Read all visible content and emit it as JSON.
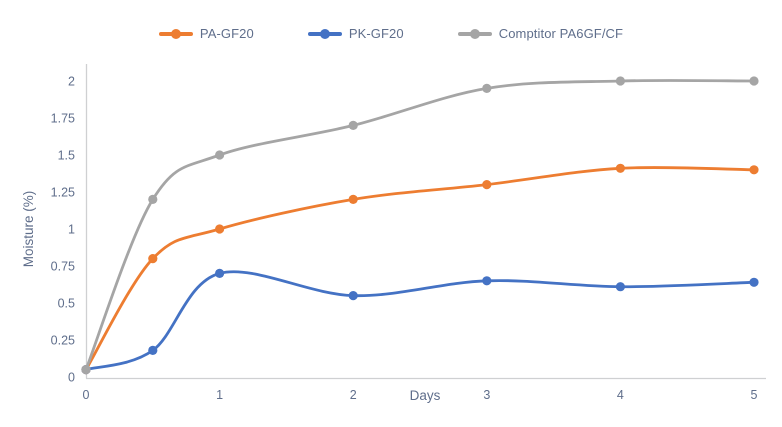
{
  "chart_data": {
    "type": "line",
    "title": "",
    "xlabel": "Days",
    "ylabel": "Moisture (%)",
    "x": [
      0,
      0.5,
      1,
      2,
      3,
      4,
      5
    ],
    "x_ticks": [
      0,
      1,
      2,
      3,
      4,
      5
    ],
    "y_ticks": [
      0,
      0.25,
      0.5,
      0.75,
      1,
      1.25,
      1.5,
      1.75,
      2
    ],
    "xlim": [
      0,
      5
    ],
    "ylim": [
      0,
      2
    ],
    "grid": false,
    "smooth": true,
    "marker": "circle",
    "legend_position": "top-center",
    "series": [
      {
        "name": "PA-GF20",
        "color": "#ED7D31",
        "values": [
          0.05,
          0.8,
          1.0,
          1.2,
          1.3,
          1.41,
          1.4
        ]
      },
      {
        "name": "PK-GF20",
        "color": "#4472C4",
        "values": [
          0.05,
          0.18,
          0.7,
          0.55,
          0.65,
          0.61,
          0.64
        ]
      },
      {
        "name": "Comptitor PA6GF/CF",
        "color": "#A5A5A5",
        "values": [
          0.05,
          1.2,
          1.5,
          1.7,
          1.95,
          2.0,
          2.0
        ]
      }
    ],
    "colors": {
      "axis_line": "#cfd0d2",
      "tick_text": "#5f6e8b",
      "background": "#ffffff"
    }
  }
}
